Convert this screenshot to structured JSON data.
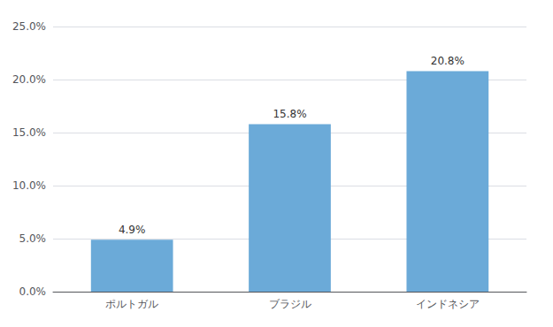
{
  "chart_data": {
    "type": "bar",
    "categories": [
      "ポルトガル",
      "ブラジル",
      "インドネシア"
    ],
    "values": [
      4.9,
      15.8,
      20.8
    ],
    "value_labels": [
      "4.9%",
      "15.8%",
      "20.8%"
    ],
    "data_labels": true,
    "color": "#6baad8",
    "ylim": [
      0,
      25
    ],
    "yticks": [
      {
        "value": 0,
        "label": "0.0%"
      },
      {
        "value": 5,
        "label": "5.0%"
      },
      {
        "value": 10,
        "label": "10.0%"
      },
      {
        "value": 15,
        "label": "15.0%"
      },
      {
        "value": 20,
        "label": "20.0%"
      },
      {
        "value": 25,
        "label": "25.0%"
      }
    ],
    "grid": true
  }
}
